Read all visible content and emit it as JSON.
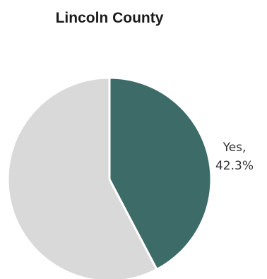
{
  "chart_data": {
    "type": "pie",
    "title": "Lincoln County",
    "slices": [
      {
        "label": "Yes",
        "value": 42.3,
        "value_label": "42.3%",
        "color": "#3d6b68"
      },
      {
        "label": "",
        "value": 57.7,
        "color": "#d9d9d9"
      }
    ],
    "start": "12 o'clock",
    "direction": "clockwise"
  }
}
